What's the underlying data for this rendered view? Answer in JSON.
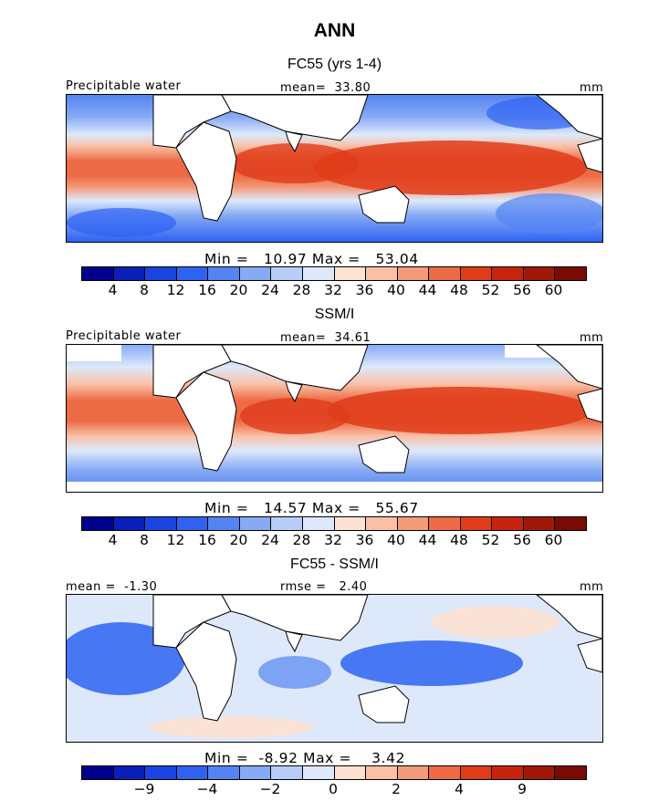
{
  "title": "ANN",
  "units_label": "mm",
  "panels": [
    {
      "title": "FC55 (yrs 1-4)",
      "left_label": "Precipitable water",
      "center_label": "mean=  33.80",
      "right_label": "mm",
      "minmax": "Min =   10.97 Max =   53.04",
      "scale": "absolute"
    },
    {
      "title": "SSM/I",
      "left_label": "Precipitable water",
      "center_label": "mean=  34.61",
      "right_label": "mm",
      "minmax": "Min =   14.57 Max =   55.67",
      "scale": "absolute"
    },
    {
      "title": "FC55 - SSM/I",
      "left_label": "mean =  -1.30",
      "center_label": "rmse =   2.40",
      "right_label": "mm",
      "minmax": "Min =  -8.92 Max =    3.42",
      "scale": "difference"
    }
  ],
  "colorbar_colors": [
    "#00008c",
    "#0a1fb8",
    "#1a45e0",
    "#2e63f2",
    "#5484f2",
    "#87aaf5",
    "#b7cdf8",
    "#dde9fb",
    "#fde2d2",
    "#f9c0a6",
    "#f39a79",
    "#ec6b45",
    "#e03c1a",
    "#c72410",
    "#a01808",
    "#7a0a04"
  ],
  "colorbar_abs_ticks": [
    "4",
    "8",
    "12",
    "16",
    "20",
    "24",
    "28",
    "32",
    "36",
    "40",
    "44",
    "48",
    "52",
    "56",
    "60"
  ],
  "colorbar_diff_ticks": [
    {
      "label": "−9",
      "index": 2
    },
    {
      "label": "−4",
      "index": 4
    },
    {
      "label": "−2",
      "index": 6
    },
    {
      "label": "0",
      "index": 8
    },
    {
      "label": "2",
      "index": 10
    },
    {
      "label": "4",
      "index": 12
    },
    {
      "label": "9",
      "index": 14
    }
  ]
}
